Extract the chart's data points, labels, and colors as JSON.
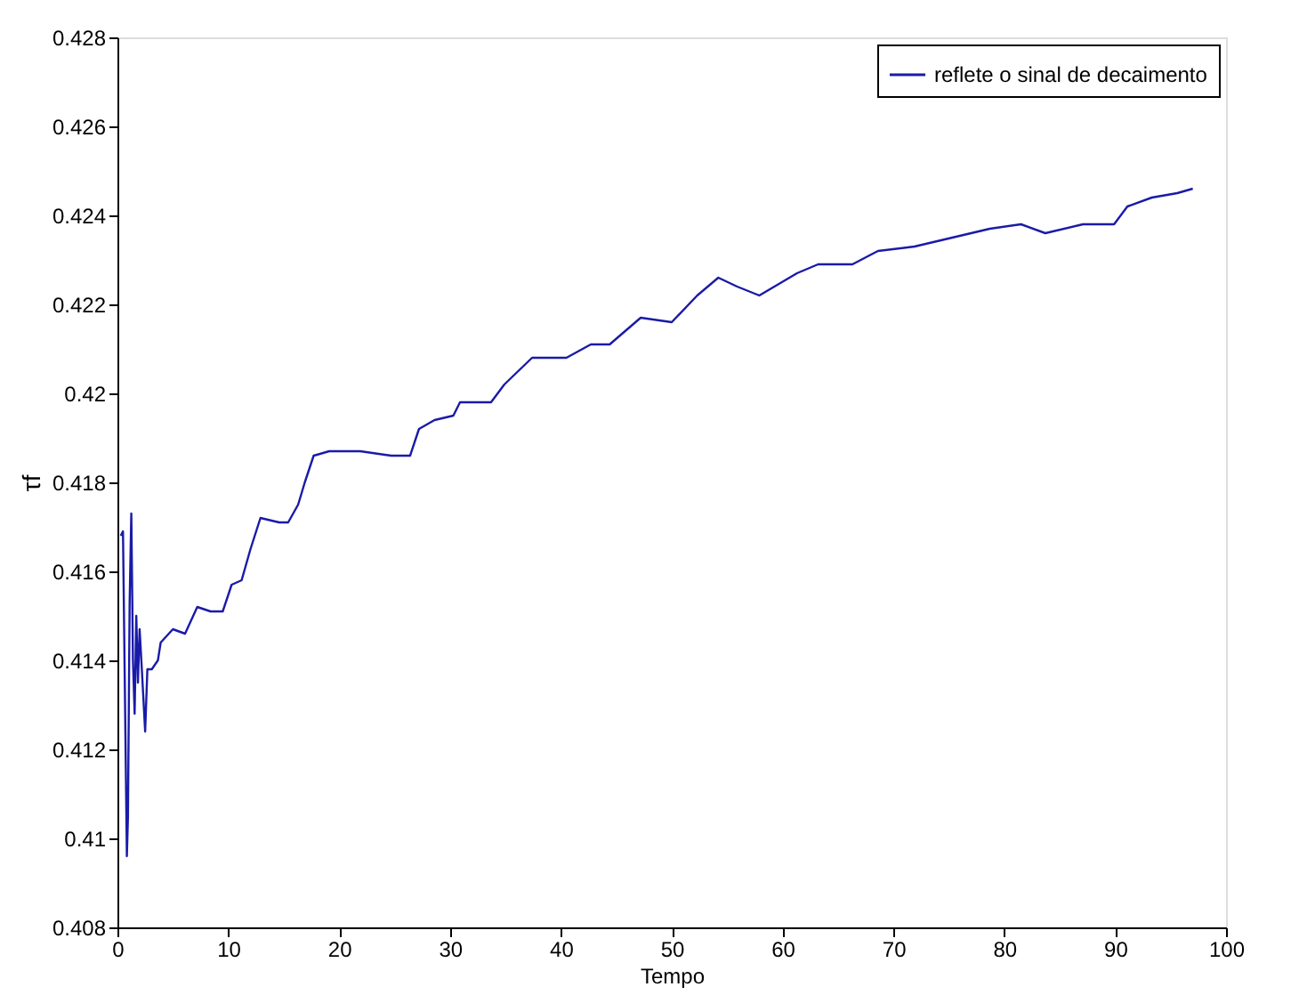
{
  "chart_data": {
    "type": "line",
    "xlabel": "Tempo",
    "ylabel": "τf",
    "xlim": [
      0,
      100
    ],
    "xticks": [
      0,
      10,
      20,
      30,
      40,
      50,
      60,
      70,
      80,
      90,
      100
    ],
    "ylim": [
      0.408,
      0.428
    ],
    "yticks": [
      0.408,
      0.41,
      0.412,
      0.414,
      0.416,
      0.418,
      0.42,
      0.422,
      0.424,
      0.426,
      0.428
    ],
    "grid": false,
    "legend": "top right",
    "marker": "none",
    "line_style": "solid",
    "series": [
      {
        "name": "reflete o sinal de decaimento",
        "color": "#1a1aa8",
        "x": [
          0.3,
          0.5,
          0.85,
          0.95,
          1.1,
          1.25,
          1.4,
          1.55,
          1.7,
          1.85,
          2.0,
          2.2,
          2.5,
          2.7,
          3.1,
          3.65,
          3.9,
          5.0,
          6.1,
          7.2,
          8.4,
          9.5,
          10.3,
          11.2,
          12.0,
          12.9,
          14.6,
          15.4,
          16.3,
          16.9,
          17.7,
          19.1,
          21.9,
          24.7,
          26.4,
          27.2,
          28.6,
          30.3,
          30.9,
          33.1,
          33.7,
          34.9,
          37.4,
          40.5,
          42.7,
          44.4,
          47.2,
          50.0,
          52.3,
          54.2,
          55.9,
          57.9,
          61.3,
          63.2,
          66.3,
          68.6,
          71.9,
          75.3,
          78.7,
          81.5,
          83.7,
          87.1,
          89.9,
          91.1,
          93.3,
          95.6,
          97.0
        ],
        "values": [
          0.4168,
          0.4169,
          0.4096,
          0.4105,
          0.4153,
          0.4173,
          0.414,
          0.4128,
          0.415,
          0.4135,
          0.4147,
          0.4138,
          0.4124,
          0.4138,
          0.4138,
          0.414,
          0.4144,
          0.4147,
          0.4146,
          0.4152,
          0.4151,
          0.4151,
          0.4157,
          0.4158,
          0.4165,
          0.4172,
          0.4171,
          0.4171,
          0.4175,
          0.418,
          0.4186,
          0.4187,
          0.4187,
          0.4186,
          0.4186,
          0.4192,
          0.4194,
          0.4195,
          0.4198,
          0.4198,
          0.4198,
          0.4202,
          0.4208,
          0.4208,
          0.4211,
          0.4211,
          0.4217,
          0.4216,
          0.4222,
          0.4226,
          0.4224,
          0.4222,
          0.4227,
          0.4229,
          0.4229,
          0.4232,
          0.4233,
          0.4235,
          0.4237,
          0.4238,
          0.4236,
          0.4238,
          0.4238,
          0.4242,
          0.4244,
          0.4245,
          0.4246
        ]
      }
    ]
  }
}
